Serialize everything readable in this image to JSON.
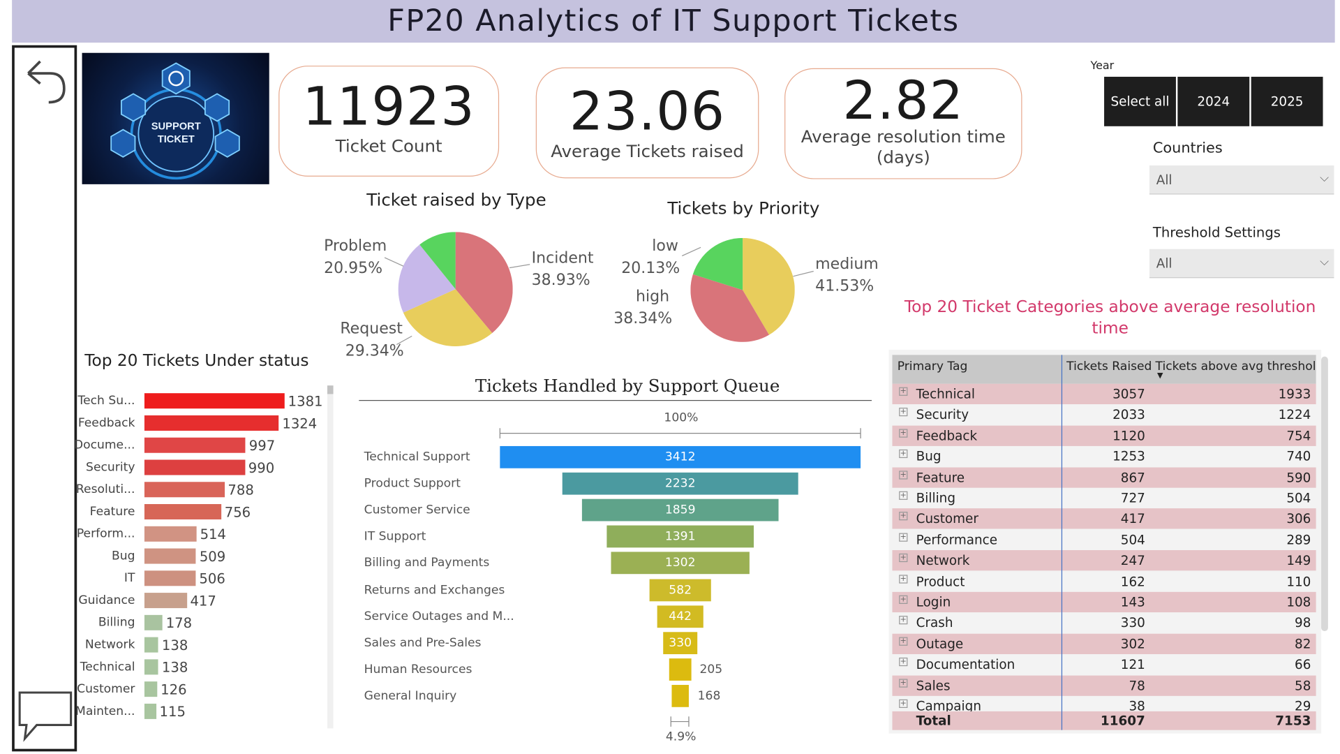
{
  "title": "FP20 Analytics of IT Support Tickets",
  "logo": {
    "line1": "SUPPORT",
    "line2": "TICKET"
  },
  "kpis": [
    {
      "value": "11923",
      "label": "Ticket Count"
    },
    {
      "value": "23.06",
      "label": "Average Tickets raised"
    },
    {
      "value": "2.82",
      "label": "Average resolution time (days)"
    }
  ],
  "year_slicer": {
    "title": "Year",
    "options": [
      "Select all",
      "2024",
      "2025"
    ]
  },
  "countries": {
    "title": "Countries",
    "value": "All"
  },
  "threshold": {
    "title": "Threshold Settings",
    "value": "All"
  },
  "pie_type": {
    "title": "Ticket raised by Type",
    "slices": [
      {
        "name": "Incident",
        "pct": "38.93%",
        "value": 38.93,
        "color": "#d9747a"
      },
      {
        "name": "Request",
        "pct": "29.34%",
        "value": 29.34,
        "color": "#e8cd5c"
      },
      {
        "name": "Problem",
        "pct": "20.95%",
        "value": 20.95,
        "color": "#c7b8ea"
      },
      {
        "name": "",
        "pct": "",
        "value": 10.78,
        "color": "#58d45e"
      }
    ]
  },
  "pie_priority": {
    "title": "Tickets by Priority",
    "slices": [
      {
        "name": "medium",
        "pct": "41.53%",
        "value": 41.53,
        "color": "#e8cd5c"
      },
      {
        "name": "high",
        "pct": "38.34%",
        "value": 38.34,
        "color": "#d9747a"
      },
      {
        "name": "low",
        "pct": "20.13%",
        "value": 20.13,
        "color": "#58d45e"
      }
    ]
  },
  "status_chart": {
    "title": "Top 20 Tickets Under status",
    "rows": [
      {
        "label": "Tech Su...",
        "value": 1381,
        "color": "#ee1c1c"
      },
      {
        "label": "Feedback",
        "value": 1324,
        "color": "#e62e2e"
      },
      {
        "label": "Docume...",
        "value": 997,
        "color": "#e04646"
      },
      {
        "label": "Security",
        "value": 990,
        "color": "#dd4040"
      },
      {
        "label": "Resoluti...",
        "value": 788,
        "color": "#d96459"
      },
      {
        "label": "Feature",
        "value": 756,
        "color": "#d76657"
      },
      {
        "label": "Perform...",
        "value": 514,
        "color": "#d19383"
      },
      {
        "label": "Bug",
        "value": 509,
        "color": "#cf9382"
      },
      {
        "label": "IT",
        "value": 506,
        "color": "#cd9180"
      },
      {
        "label": "Guidance",
        "value": 417,
        "color": "#c7a08c"
      },
      {
        "label": "Billing",
        "value": 178,
        "color": "#a9c3a0"
      },
      {
        "label": "Network",
        "value": 138,
        "color": "#a8c59f"
      },
      {
        "label": "Technical",
        "value": 138,
        "color": "#a8c59f"
      },
      {
        "label": "Customer",
        "value": 126,
        "color": "#a8c59f"
      },
      {
        "label": "Mainten...",
        "value": 115,
        "color": "#a8c59f"
      }
    ]
  },
  "funnel": {
    "title": "Tickets Handled by Support Queue",
    "top_pct": "100%",
    "bottom_pct": "4.9%",
    "rows": [
      {
        "label": "Technical Support",
        "value": 3412,
        "color": "#1f8ef1"
      },
      {
        "label": "Product Support",
        "value": 2232,
        "color": "#4b9aa0"
      },
      {
        "label": "Customer Service",
        "value": 1859,
        "color": "#5fa38a"
      },
      {
        "label": "IT Support",
        "value": 1391,
        "color": "#8fae5b"
      },
      {
        "label": "Billing and Payments",
        "value": 1302,
        "color": "#9bb054"
      },
      {
        "label": "Returns and Exchanges",
        "value": 582,
        "color": "#cdbb2b"
      },
      {
        "label": "Service Outages and M...",
        "value": 442,
        "color": "#d2bb22"
      },
      {
        "label": "Sales and Pre-Sales",
        "value": 330,
        "color": "#d7bb17"
      },
      {
        "label": "Human Resources",
        "value": 205,
        "color": "#dcbb0f"
      },
      {
        "label": "General Inquiry",
        "value": 168,
        "color": "#dcbb0f"
      }
    ]
  },
  "table": {
    "title": "Top 20 Ticket Categories above average resolution time",
    "columns": [
      "Primary Tag",
      "Tickets Raised",
      "Tickets above avg threshold"
    ],
    "rows": [
      [
        "Technical",
        "3057",
        "1933"
      ],
      [
        "Security",
        "2033",
        "1224"
      ],
      [
        "Feedback",
        "1120",
        "754"
      ],
      [
        "Bug",
        "1253",
        "740"
      ],
      [
        "Feature",
        "867",
        "590"
      ],
      [
        "Billing",
        "727",
        "504"
      ],
      [
        "Customer",
        "417",
        "306"
      ],
      [
        "Performance",
        "504",
        "289"
      ],
      [
        "Network",
        "247",
        "149"
      ],
      [
        "Product",
        "162",
        "110"
      ],
      [
        "Login",
        "143",
        "108"
      ],
      [
        "Crash",
        "330",
        "98"
      ],
      [
        "Outage",
        "302",
        "82"
      ],
      [
        "Documentation",
        "121",
        "66"
      ],
      [
        "Sales",
        "78",
        "58"
      ],
      [
        "Campaign",
        "38",
        "29"
      ]
    ],
    "total": [
      "Total",
      "11607",
      "7153"
    ]
  }
}
